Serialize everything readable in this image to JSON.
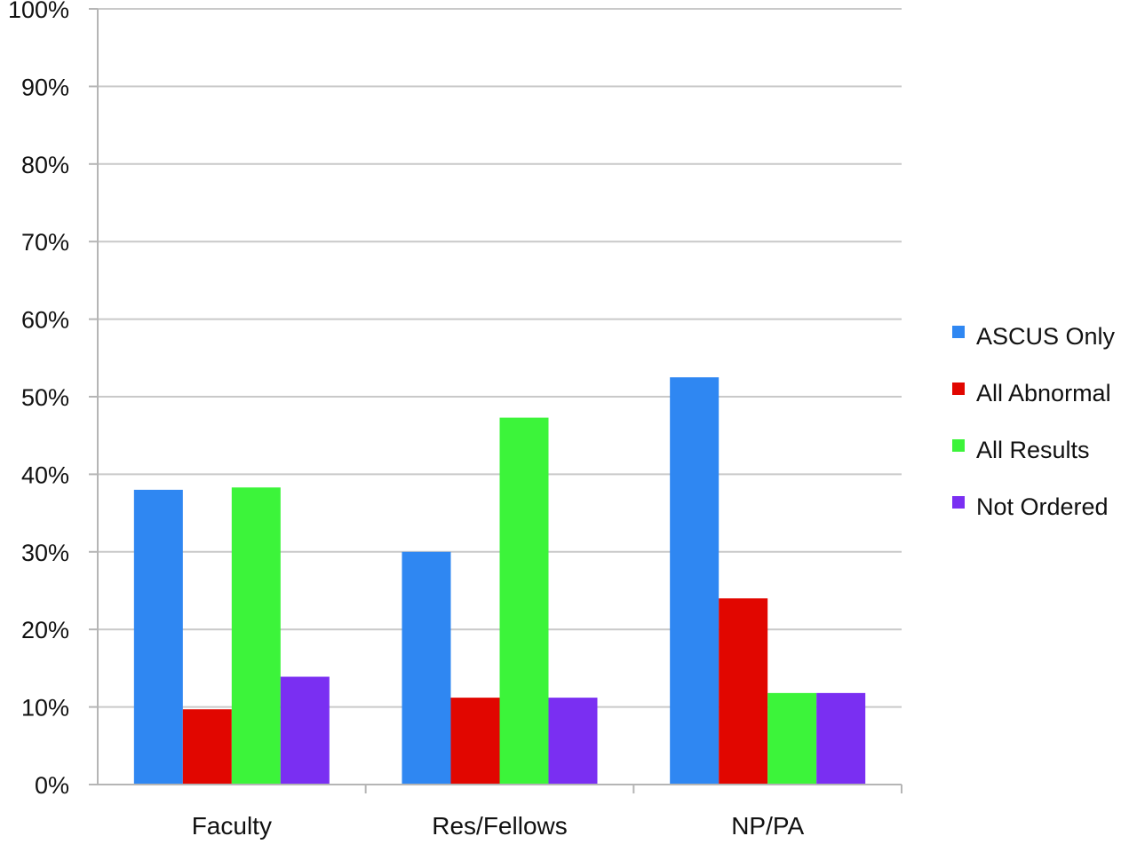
{
  "chart_data": {
    "type": "bar",
    "title": "",
    "xlabel": "",
    "ylabel": "",
    "categories": [
      "Faculty",
      "Res/Fellows",
      "NP/PA"
    ],
    "series": [
      {
        "name": "ASCUS Only",
        "color": "#2f87f2",
        "values": [
          38,
          30,
          52.5
        ]
      },
      {
        "name": "All Abnormal",
        "color": "#e10600",
        "values": [
          9.7,
          11.2,
          24
        ]
      },
      {
        "name": "All Results",
        "color": "#3cf43a",
        "values": [
          38.3,
          47.3,
          11.8
        ]
      },
      {
        "name": "Not Ordered",
        "color": "#7a2ff2",
        "values": [
          13.9,
          11.2,
          11.8
        ]
      }
    ],
    "ylim": [
      0,
      100
    ],
    "y_ticks": [
      "0%",
      "10%",
      "20%",
      "30%",
      "40%",
      "50%",
      "60%",
      "70%",
      "80%",
      "90%",
      "100%"
    ],
    "grid": true,
    "legend_position": "right"
  }
}
